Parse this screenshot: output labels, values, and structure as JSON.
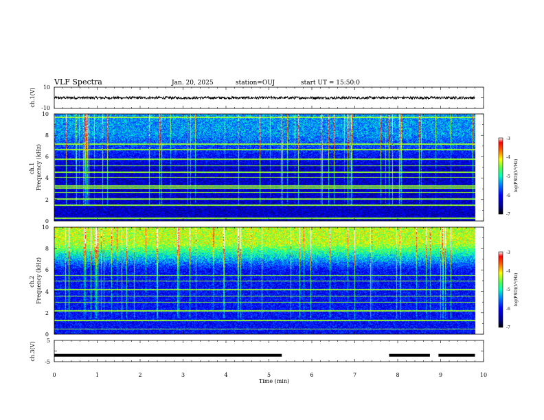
{
  "header": {
    "title": "VLF Spectra",
    "date": "Jan. 20, 2025",
    "station": "station=OUJ",
    "start": "start UT = 15:50:0"
  },
  "colors": {
    "background": "#ffffff",
    "axes": "#000000",
    "trace": "#000000",
    "colormap": [
      "#00008f",
      "#0000ff",
      "#0080ff",
      "#00ffff",
      "#80ff80",
      "#ffff00",
      "#ff8000",
      "#ff0000",
      "#800000"
    ]
  },
  "chart_data": [
    {
      "type": "line",
      "name": "ch1-waveform",
      "ylabel": "ch.1(V)",
      "ylim": [
        -10,
        10
      ],
      "yticks": [
        "10",
        "-10"
      ],
      "xlim": [
        0,
        10
      ],
      "trace_level": 0,
      "trace_amplitude": 1.2,
      "trace_end_min": 9.8
    },
    {
      "type": "heatmap",
      "name": "ch1-spectrogram",
      "ylabel": "ch.1\nFrequency (kHz)",
      "ylim": [
        0,
        10
      ],
      "yticks": [
        "0",
        "2",
        "4",
        "6",
        "8",
        "10"
      ],
      "xlim": [
        0,
        10
      ],
      "data_end_min": 9.8,
      "colorbar": {
        "label": "log(PSD)(V²/Hz)",
        "range": [
          -7,
          -3
        ],
        "ticks": [
          "-3",
          "-4",
          "-5",
          "-6",
          "-7"
        ]
      },
      "background_level": -6.3,
      "upper_band": {
        "from_khz": 5,
        "to_khz": 10,
        "level": -5.4
      },
      "tones_khz": [
        0.3,
        1.5,
        2.1,
        2.7,
        3.1,
        3.3,
        4.1,
        4.6,
        5.2,
        5.8,
        6.7,
        7.2,
        9.7
      ]
    },
    {
      "type": "heatmap",
      "name": "ch2-spectrogram",
      "ylabel": "ch.2\nFrequency (kHz)",
      "ylim": [
        0,
        10
      ],
      "yticks": [
        "0",
        "2",
        "4",
        "6",
        "8",
        "10"
      ],
      "xlim": [
        0,
        10
      ],
      "data_end_min": 9.8,
      "colorbar": {
        "label": "log(PSD)(V²/Hz)",
        "range": [
          -7,
          -3
        ],
        "ticks": [
          "-3",
          "-4",
          "-5",
          "-6",
          "-7"
        ]
      },
      "background_level": -6.0,
      "upper_band": {
        "from_khz": 6,
        "to_khz": 10,
        "level": -4.3
      },
      "tones_khz": [
        0.5,
        1.3,
        2.2,
        3.0,
        3.6,
        4.2,
        5.0,
        5.5
      ]
    },
    {
      "type": "line",
      "name": "ch3-waveform",
      "ylabel": "ch.3(V)",
      "ylim": [
        -5,
        5
      ],
      "yticks": [
        "5",
        "-5"
      ],
      "xlim": [
        0,
        10
      ],
      "xlabel": "Time (min)",
      "xticks": [
        "0",
        "1",
        "2",
        "3",
        "4",
        "5",
        "6",
        "7",
        "8",
        "9",
        "10"
      ],
      "level_v": -2.0,
      "segments_min": [
        [
          0,
          5.3
        ],
        [
          7.8,
          8.75
        ],
        [
          8.95,
          9.8
        ]
      ]
    }
  ]
}
